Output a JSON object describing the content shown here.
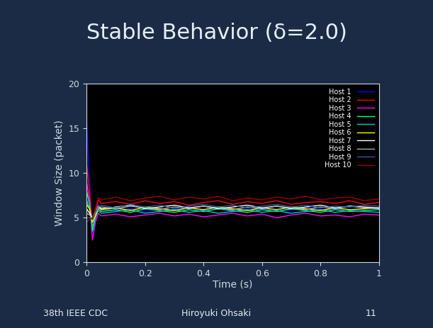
{
  "chart_data": {
    "type": "line",
    "title": "Stable Behavior (δ=2.0)",
    "x_label": "Time (s)",
    "y_label": "Window Size (packet)",
    "x": [
      0,
      0.01,
      0.02,
      0.03,
      0.04,
      0.05,
      0.1,
      0.15,
      0.2,
      0.25,
      0.3,
      0.35,
      0.4,
      0.45,
      0.5,
      0.55,
      0.6,
      0.65,
      0.7,
      0.75,
      0.8,
      0.85,
      0.9,
      0.95,
      1.0
    ],
    "series": [
      {
        "name": "Host 1",
        "color": "#0000ff",
        "values": [
          16,
          9,
          3,
          5,
          6.5,
          6,
          5.8,
          6.1,
          5.7,
          6.0,
          5.9,
          6.2,
          5.8,
          6.0,
          5.7,
          6.1,
          5.9,
          6.0,
          5.8,
          6.2,
          5.9,
          6.0,
          5.7,
          6.1,
          6.0
        ]
      },
      {
        "name": "Host 2",
        "color": "#ff0000",
        "values": [
          11,
          8,
          4,
          5.5,
          7,
          6.6,
          6.8,
          6.5,
          6.9,
          6.6,
          6.8,
          6.4,
          6.7,
          6.9,
          6.5,
          6.8,
          6.6,
          6.9,
          6.5,
          6.7,
          6.8,
          6.6,
          6.9,
          6.5,
          6.7
        ]
      },
      {
        "name": "Host 3",
        "color": "#ff00ff",
        "values": [
          9,
          7,
          2.5,
          4.5,
          5.5,
          5.2,
          5.4,
          5.1,
          5.3,
          5.5,
          5.2,
          5.4,
          5.1,
          5.3,
          5.5,
          5.2,
          5.4,
          5.0,
          5.3,
          5.5,
          5.2,
          5.3,
          5.1,
          5.4,
          5.3
        ]
      },
      {
        "name": "Host 4",
        "color": "#00ff80",
        "values": [
          8,
          6.5,
          3.5,
          5,
          6,
          5.7,
          5.9,
          5.6,
          6.0,
          5.8,
          5.6,
          5.9,
          5.7,
          6.0,
          5.8,
          5.6,
          5.9,
          5.7,
          6.0,
          5.8,
          5.6,
          5.9,
          5.7,
          5.8,
          5.9
        ]
      },
      {
        "name": "Host 5",
        "color": "#00c8c8",
        "values": [
          7,
          6,
          4,
          5,
          5.8,
          5.5,
          5.7,
          5.9,
          5.5,
          5.7,
          5.9,
          5.6,
          5.8,
          5.5,
          5.7,
          5.9,
          5.6,
          5.8,
          5.5,
          5.7,
          5.9,
          5.6,
          5.8,
          5.7,
          5.6
        ]
      },
      {
        "name": "Host 6",
        "color": "#ffff00",
        "values": [
          6.5,
          6,
          4.5,
          5.2,
          6.2,
          5.9,
          6.1,
          5.8,
          6.2,
          6.0,
          5.8,
          6.1,
          5.9,
          6.2,
          6.0,
          5.8,
          6.1,
          5.9,
          6.2,
          6.0,
          5.8,
          6.1,
          5.9,
          6.0,
          6.1
        ]
      },
      {
        "name": "Host 7",
        "color": "#ffffff",
        "values": [
          6,
          5.5,
          5,
          5.5,
          6.3,
          6.0,
          6.2,
          6.4,
          6.0,
          6.2,
          6.4,
          6.1,
          6.3,
          6.0,
          6.2,
          6.4,
          6.1,
          6.3,
          6.0,
          6.2,
          6.4,
          6.1,
          6.3,
          6.2,
          6.1
        ]
      },
      {
        "name": "Host 8",
        "color": "#b0b0b0",
        "values": [
          5.5,
          5.3,
          5,
          5.6,
          6.0,
          6.2,
          6.0,
          6.3,
          6.1,
          5.9,
          6.2,
          6.0,
          6.3,
          6.1,
          5.9,
          6.2,
          6.0,
          6.3,
          6.1,
          5.9,
          6.2,
          6.0,
          6.3,
          6.1,
          6.0
        ]
      },
      {
        "name": "Host 9",
        "color": "#2060a0",
        "values": [
          5,
          5,
          4.8,
          5.5,
          6.2,
          6.4,
          6.1,
          6.5,
          6.2,
          6.4,
          6.0,
          6.3,
          6.5,
          6.2,
          6.4,
          6.1,
          6.3,
          6.5,
          6.2,
          6.4,
          6.1,
          6.3,
          6.2,
          6.4,
          6.3
        ]
      },
      {
        "name": "Host 10",
        "color": "#a00000",
        "values": [
          4.5,
          4.8,
          5,
          6,
          7.2,
          7.0,
          7.3,
          6.9,
          7.2,
          7.4,
          7.0,
          7.3,
          7.1,
          7.4,
          6.9,
          7.2,
          7.0,
          7.3,
          7.1,
          7.4,
          7.0,
          7.2,
          7.3,
          6.9,
          7.1
        ]
      }
    ],
    "xlim": [
      0,
      1
    ],
    "xticks": [
      0,
      0.2,
      0.4,
      0.6,
      0.8,
      1
    ],
    "ylim": [
      0,
      20
    ],
    "yticks": [
      0,
      5,
      10,
      15,
      20
    ],
    "grid": false,
    "legend": "upper right"
  },
  "footer": {
    "left": "38th IEEE CDC",
    "center": "Hiroyuki Ohsaki",
    "right": "11"
  }
}
